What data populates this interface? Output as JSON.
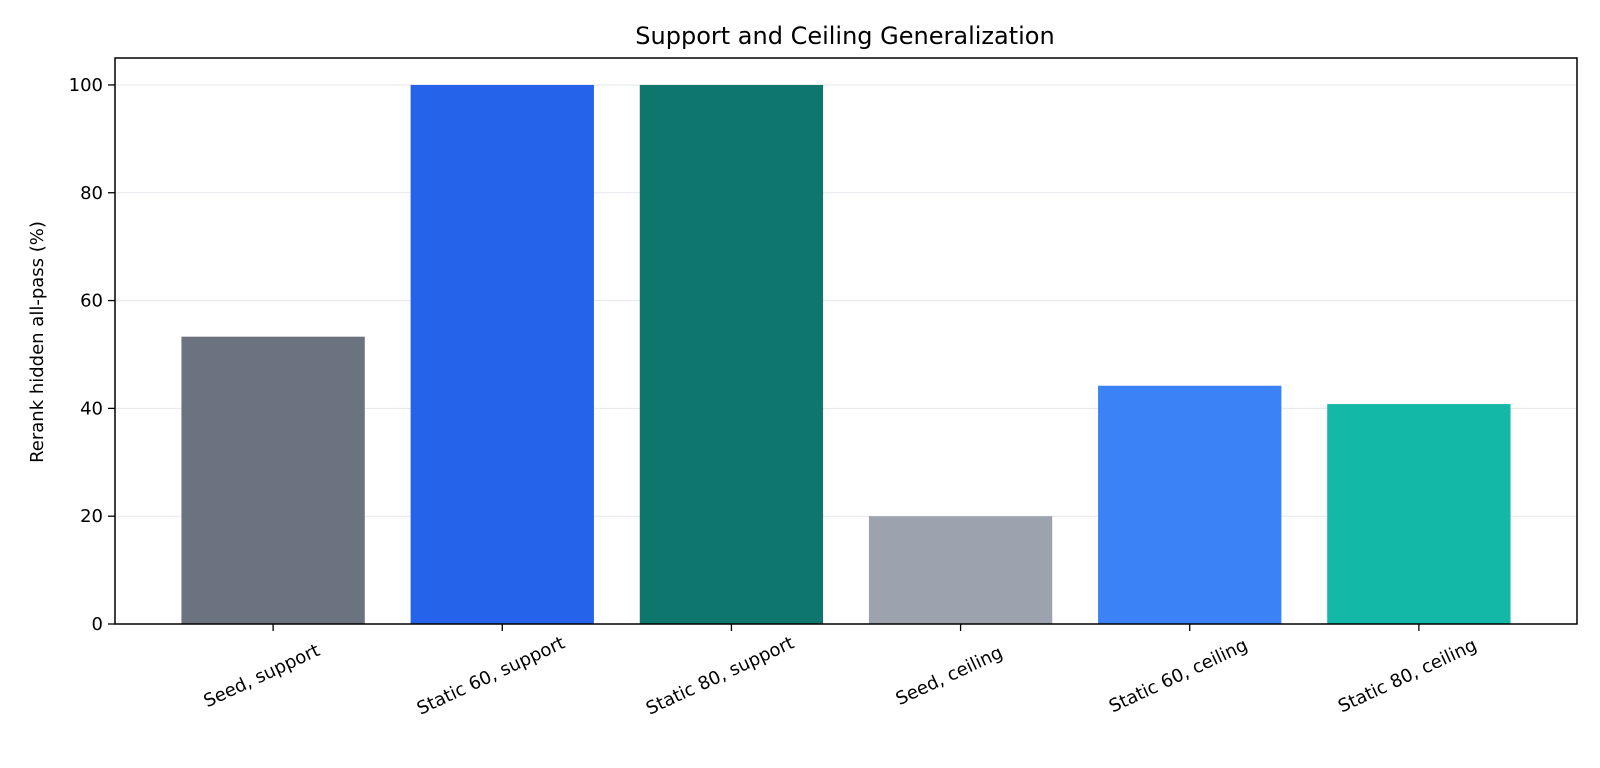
{
  "chart_data": {
    "type": "bar",
    "title": "Support and Ceiling Generalization",
    "xlabel": "",
    "ylabel": "Rerank hidden all-pass (%)",
    "categories": [
      "Seed, support",
      "Static 60, support",
      "Static 80, support",
      "Seed, ceiling",
      "Static 60, ceiling",
      "Static 80, ceiling"
    ],
    "values": [
      53.3,
      100,
      100,
      20,
      44.2,
      40.8
    ],
    "colors": [
      "#6b7280",
      "#2563eb",
      "#0f766e",
      "#9ca3af",
      "#3b82f6",
      "#14b8a6"
    ],
    "ylim": [
      0,
      105
    ],
    "yticks": [
      0,
      20,
      40,
      60,
      80,
      100
    ],
    "grid": true,
    "grid_axis": "y",
    "legend": "none"
  }
}
